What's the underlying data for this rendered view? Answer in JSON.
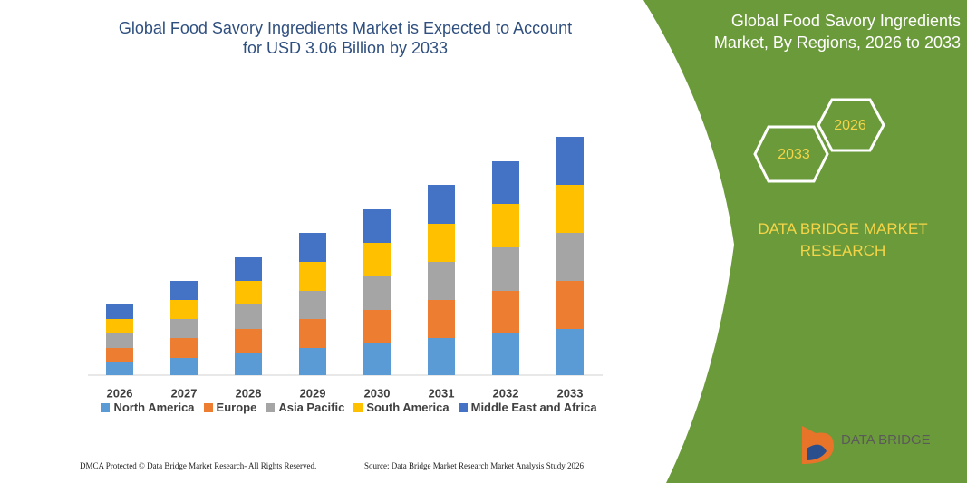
{
  "chart_data": {
    "type": "stacked_bar",
    "title": "Global Food Savory Ingredients Market is Expected to Account for USD 3.06 Billion by 2033",
    "categories": [
      "2026",
      "2027",
      "2028",
      "2029",
      "2030",
      "2031",
      "2032",
      "2033"
    ],
    "series": [
      {
        "name": "North America",
        "color": "#5b9bd5",
        "values": [
          14,
          19,
          25,
          30,
          35,
          41,
          46,
          51
        ]
      },
      {
        "name": "Europe",
        "color": "#ed7d31",
        "values": [
          16,
          22,
          26,
          32,
          37,
          42,
          47,
          53
        ]
      },
      {
        "name": "Asia Pacific",
        "color": "#a5a5a5",
        "values": [
          16,
          21,
          27,
          31,
          37,
          42,
          48,
          53
        ]
      },
      {
        "name": "South America",
        "color": "#ffc000",
        "values": [
          16,
          21,
          26,
          32,
          37,
          42,
          48,
          53
        ]
      },
      {
        "name": "Middle East and Africa",
        "color": "#4472c4",
        "values": [
          16,
          21,
          26,
          32,
          37,
          43,
          47,
          53
        ]
      }
    ]
  },
  "panel": {
    "title": "Global Food Savory Ingredients Market, By Regions, 2026 to 2033",
    "hex_labels": [
      "2026",
      "2033"
    ],
    "brand": "DATA BRIDGE MARKET RESEARCH"
  },
  "logo": {
    "text": "DATA BRIDGE"
  },
  "footer": {
    "left": "DMCA Protected © Data Bridge Market Research-  All Rights Reserved.",
    "right": "Source: Data Bridge Market Research  Market Analysis Study 2026"
  }
}
